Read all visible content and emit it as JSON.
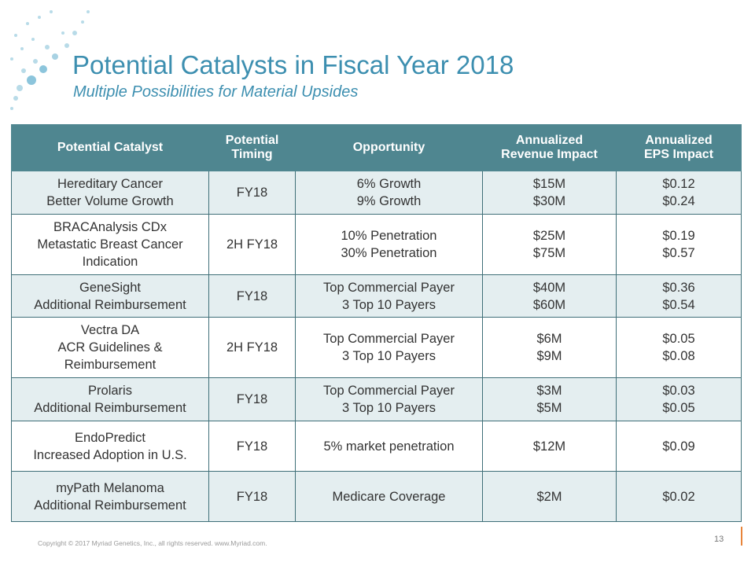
{
  "header": {
    "title": "Potential Catalysts in Fiscal Year 2018",
    "subtitle": "Multiple Possibilities for Material Upsides"
  },
  "table": {
    "columns": [
      [
        "Potential Catalyst"
      ],
      [
        "Potential",
        "Timing"
      ],
      [
        "Opportunity"
      ],
      [
        "Annualized",
        "Revenue Impact"
      ],
      [
        "Annualized",
        "EPS Impact"
      ]
    ],
    "rows": [
      [
        [
          "Hereditary Cancer",
          "Better Volume Growth"
        ],
        [
          "FY18"
        ],
        [
          "6% Growth",
          "9% Growth"
        ],
        [
          "$15M",
          "$30M"
        ],
        [
          "$0.12",
          "$0.24"
        ]
      ],
      [
        [
          "BRACAnalysis CDx",
          "Metastatic Breast Cancer",
          "Indication"
        ],
        [
          "2H FY18"
        ],
        [
          "10% Penetration",
          "30% Penetration"
        ],
        [
          "$25M",
          "$75M"
        ],
        [
          "$0.19",
          "$0.57"
        ]
      ],
      [
        [
          "GeneSight",
          "Additional Reimbursement"
        ],
        [
          "FY18"
        ],
        [
          "Top Commercial Payer",
          "3 Top 10 Payers"
        ],
        [
          "$40M",
          "$60M"
        ],
        [
          "$0.36",
          "$0.54"
        ]
      ],
      [
        [
          "Vectra DA",
          "ACR Guidelines &",
          "Reimbursement"
        ],
        [
          "2H FY18"
        ],
        [
          "Top Commercial Payer",
          "3 Top 10 Payers"
        ],
        [
          "$6M",
          "$9M"
        ],
        [
          "$0.05",
          "$0.08"
        ]
      ],
      [
        [
          "Prolaris",
          "Additional Reimbursement"
        ],
        [
          "FY18"
        ],
        [
          "Top Commercial Payer",
          "3 Top 10 Payers"
        ],
        [
          "$3M",
          "$5M"
        ],
        [
          "$0.03",
          "$0.05"
        ]
      ],
      [
        [
          "EndoPredict",
          "Increased Adoption in U.S."
        ],
        [
          "FY18"
        ],
        [
          "5% market penetration"
        ],
        [
          "$12M"
        ],
        [
          "$0.09"
        ]
      ],
      [
        [
          "myPath Melanoma",
          "Additional Reimbursement"
        ],
        [
          "FY18"
        ],
        [
          "Medicare Coverage"
        ],
        [
          "$2M"
        ],
        [
          "$0.02"
        ]
      ]
    ]
  },
  "footer": {
    "copyright": "Copyright © 2017 Myriad Genetics, Inc., all rights reserved.  www.Myriad.com.",
    "page_number": "13"
  }
}
